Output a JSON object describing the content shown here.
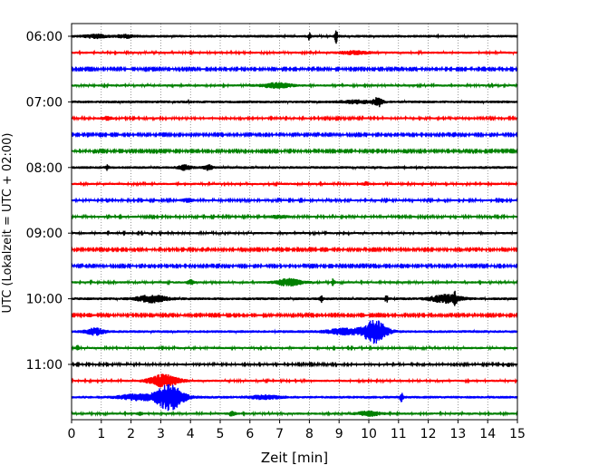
{
  "chart_data": {
    "type": "line",
    "title": "",
    "xlabel": "Zeit  [min]",
    "ylabel": "UTC (Lokalzeit = UTC + 02:00)",
    "xlim": [
      0,
      15
    ],
    "x_ticks": [
      0,
      1,
      2,
      3,
      4,
      5,
      6,
      7,
      8,
      9,
      10,
      11,
      12,
      13,
      14,
      15
    ],
    "x_tick_labels": [
      "0",
      "1",
      "2",
      "3",
      "4",
      "5",
      "6",
      "7",
      "8",
      "9",
      "10",
      "11",
      "12",
      "13",
      "14",
      "15"
    ],
    "y_tick_labels": [
      "06:00",
      "07:00",
      "08:00",
      "09:00",
      "10:00",
      "11:00"
    ],
    "trace_interval_min": 15,
    "x_grid": true,
    "y_grid": false,
    "colors": [
      "#000000",
      "#ff0000",
      "#0000ff",
      "#008000"
    ],
    "traces": [
      {
        "start": "06:00",
        "color": "#000000",
        "noise": 0.12,
        "events": [
          {
            "x": 0.8,
            "amp": 0.15,
            "width": 0.35
          },
          {
            "x": 1.8,
            "amp": 0.12,
            "width": 0.3
          },
          {
            "x": 8.0,
            "amp": 0.35,
            "width": 0.04
          },
          {
            "x": 8.9,
            "amp": 0.75,
            "width": 0.04
          }
        ]
      },
      {
        "start": "06:15",
        "color": "#ff0000",
        "noise": 0.1,
        "events": [
          {
            "x": 9.5,
            "amp": 0.14,
            "width": 0.5
          }
        ]
      },
      {
        "start": "06:30",
        "color": "#0000ff",
        "noise": 0.08,
        "events": []
      },
      {
        "start": "06:45",
        "color": "#008000",
        "noise": 0.1,
        "events": [
          {
            "x": 6.9,
            "amp": 0.22,
            "width": 0.5
          }
        ]
      },
      {
        "start": "07:00",
        "color": "#000000",
        "noise": 0.12,
        "events": [
          {
            "x": 10.3,
            "amp": 0.45,
            "width": 0.15
          },
          {
            "x": 9.6,
            "amp": 0.12,
            "width": 0.5
          }
        ]
      },
      {
        "start": "07:15",
        "color": "#ff0000",
        "noise": 0.09,
        "events": [
          {
            "x": 1.2,
            "amp": 0.15,
            "width": 0.2
          }
        ]
      },
      {
        "start": "07:30",
        "color": "#0000ff",
        "noise": 0.08,
        "events": []
      },
      {
        "start": "07:45",
        "color": "#008000",
        "noise": 0.08,
        "events": []
      },
      {
        "start": "08:00",
        "color": "#000000",
        "noise": 0.12,
        "events": [
          {
            "x": 1.2,
            "amp": 0.2,
            "width": 0.05
          },
          {
            "x": 3.8,
            "amp": 0.2,
            "width": 0.2
          },
          {
            "x": 4.6,
            "amp": 0.2,
            "width": 0.15
          }
        ]
      },
      {
        "start": "08:15",
        "color": "#ff0000",
        "noise": 0.1,
        "events": [
          {
            "x": 9.9,
            "amp": 0.15,
            "width": 0.1
          }
        ]
      },
      {
        "start": "08:30",
        "color": "#0000ff",
        "noise": 0.09,
        "events": [
          {
            "x": 3.9,
            "amp": 0.14,
            "width": 0.2
          },
          {
            "x": 14.5,
            "amp": 0.2,
            "width": 0.05
          }
        ]
      },
      {
        "start": "08:45",
        "color": "#008000",
        "noise": 0.09,
        "events": [
          {
            "x": 7.0,
            "amp": 0.14,
            "width": 0.3
          }
        ]
      },
      {
        "start": "09:00",
        "color": "#000000",
        "noise": 0.1,
        "events": []
      },
      {
        "start": "09:15",
        "color": "#ff0000",
        "noise": 0.08,
        "events": []
      },
      {
        "start": "09:30",
        "color": "#0000ff",
        "noise": 0.08,
        "events": []
      },
      {
        "start": "09:45",
        "color": "#008000",
        "noise": 0.1,
        "events": [
          {
            "x": 4.0,
            "amp": 0.2,
            "width": 0.1
          },
          {
            "x": 7.3,
            "amp": 0.32,
            "width": 0.45
          },
          {
            "x": 8.8,
            "amp": 0.3,
            "width": 0.05
          }
        ]
      },
      {
        "start": "10:00",
        "color": "#000000",
        "noise": 0.12,
        "events": [
          {
            "x": 2.7,
            "amp": 0.3,
            "width": 0.5
          },
          {
            "x": 8.4,
            "amp": 0.28,
            "width": 0.05
          },
          {
            "x": 10.6,
            "amp": 0.3,
            "width": 0.05
          },
          {
            "x": 12.6,
            "amp": 0.35,
            "width": 0.5
          },
          {
            "x": 12.9,
            "amp": 0.45,
            "width": 0.05
          }
        ]
      },
      {
        "start": "10:15",
        "color": "#ff0000",
        "noise": 0.08,
        "events": [
          {
            "x": 0.6,
            "amp": 0.15,
            "width": 0.1
          }
        ]
      },
      {
        "start": "10:30",
        "color": "#0000ff",
        "noise": 0.12,
        "events": [
          {
            "x": 0.8,
            "amp": 0.28,
            "width": 0.3
          },
          {
            "x": 10.2,
            "amp": 1.0,
            "width": 0.4
          },
          {
            "x": 9.2,
            "amp": 0.25,
            "width": 0.6
          }
        ]
      },
      {
        "start": "10:45",
        "color": "#008000",
        "noise": 0.1,
        "events": [
          {
            "x": 0.2,
            "amp": 0.2,
            "width": 0.05
          }
        ]
      },
      {
        "start": "11:00",
        "color": "#000000",
        "noise": 0.09,
        "events": [
          {
            "x": 14.7,
            "amp": 0.2,
            "width": 0.05
          }
        ]
      },
      {
        "start": "11:15",
        "color": "#ff0000",
        "noise": 0.1,
        "events": [
          {
            "x": 3.1,
            "amp": 0.55,
            "width": 0.5
          }
        ]
      },
      {
        "start": "11:30",
        "color": "#0000ff",
        "noise": 0.12,
        "events": [
          {
            "x": 3.3,
            "amp": 1.2,
            "width": 0.45
          },
          {
            "x": 2.2,
            "amp": 0.25,
            "width": 0.6
          },
          {
            "x": 11.1,
            "amp": 0.35,
            "width": 0.05
          },
          {
            "x": 6.5,
            "amp": 0.15,
            "width": 0.5
          }
        ]
      },
      {
        "start": "11:45",
        "color": "#008000",
        "noise": 0.1,
        "events": [
          {
            "x": 5.4,
            "amp": 0.22,
            "width": 0.1
          },
          {
            "x": 10.0,
            "amp": 0.2,
            "width": 0.4
          },
          {
            "x": 2.3,
            "amp": 0.12,
            "width": 0.1
          }
        ]
      }
    ]
  }
}
